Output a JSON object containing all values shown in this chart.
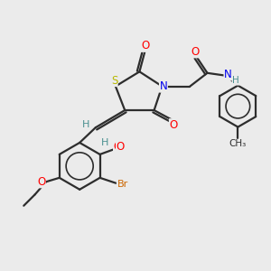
{
  "background_color": "#ebebeb",
  "bond_color": "#2d2d2d",
  "colors": {
    "O": "#ff0000",
    "S": "#b8b800",
    "N": "#0000ee",
    "H": "#4a9090",
    "Br": "#cc6600",
    "C": "#2d2d2d"
  },
  "figsize": [
    3.0,
    3.0
  ],
  "dpi": 100
}
